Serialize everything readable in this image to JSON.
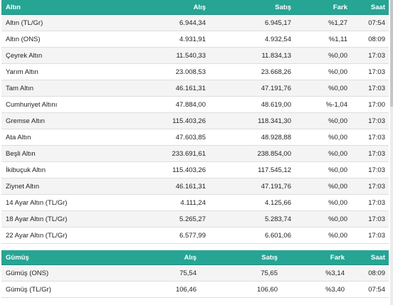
{
  "gold": {
    "headers": {
      "name": "Altın",
      "buy": "Alış",
      "sell": "Satış",
      "diff": "Fark",
      "time": "Saat"
    },
    "rows": [
      {
        "name": "Altın (TL/Gr)",
        "buy": "6.944,34",
        "sell": "6.945,17",
        "diff": "%1,27",
        "time": "07:54"
      },
      {
        "name": "Altın (ONS)",
        "buy": "4.931,91",
        "sell": "4.932,54",
        "diff": "%1,11",
        "time": "08:09"
      },
      {
        "name": "Çeyrek Altın",
        "buy": "11.540,33",
        "sell": "11.834,13",
        "diff": "%0,00",
        "time": "17:03"
      },
      {
        "name": "Yarım Altın",
        "buy": "23.008,53",
        "sell": "23.668,26",
        "diff": "%0,00",
        "time": "17:03"
      },
      {
        "name": "Tam Altın",
        "buy": "46.161,31",
        "sell": "47.191,76",
        "diff": "%0,00",
        "time": "17:03"
      },
      {
        "name": "Cumhuriyet Altını",
        "buy": "47.884,00",
        "sell": "48.619,00",
        "diff": "%-1,04",
        "time": "17:00"
      },
      {
        "name": "Gremse Altın",
        "buy": "115.403,26",
        "sell": "118.341,30",
        "diff": "%0,00",
        "time": "17:03"
      },
      {
        "name": "Ata Altın",
        "buy": "47.603,85",
        "sell": "48.928,88",
        "diff": "%0,00",
        "time": "17:03"
      },
      {
        "name": "Beşli Altın",
        "buy": "233.691,61",
        "sell": "238.854,00",
        "diff": "%0,00",
        "time": "17:03"
      },
      {
        "name": "İkibuçuk Altın",
        "buy": "115.403,26",
        "sell": "117.545,12",
        "diff": "%0,00",
        "time": "17:03"
      },
      {
        "name": "Ziynet Altın",
        "buy": "46.161,31",
        "sell": "47.191,76",
        "diff": "%0,00",
        "time": "17:03"
      },
      {
        "name": "14 Ayar Altın (TL/Gr)",
        "buy": "4.111,24",
        "sell": "4.125,66",
        "diff": "%0,00",
        "time": "17:03"
      },
      {
        "name": "18 Ayar Altın (TL/Gr)",
        "buy": "5.265,27",
        "sell": "5.283,74",
        "diff": "%0,00",
        "time": "17:03"
      },
      {
        "name": "22 Ayar Altın (TL/Gr)",
        "buy": "6.577,99",
        "sell": "6.601,06",
        "diff": "%0,00",
        "time": "17:03"
      }
    ]
  },
  "silver": {
    "headers": {
      "name": "Gümüş",
      "buy": "Alış",
      "sell": "Satış",
      "diff": "Fark",
      "time": "Saat"
    },
    "rows": [
      {
        "name": "Gümüş (ONS)",
        "buy": "75,54",
        "sell": "75,65",
        "diff": "%3,14",
        "time": "08:09"
      },
      {
        "name": "Gümüş (TL/Gr)",
        "buy": "106,46",
        "sell": "106,60",
        "diff": "%3,40",
        "time": "07:54"
      }
    ]
  }
}
